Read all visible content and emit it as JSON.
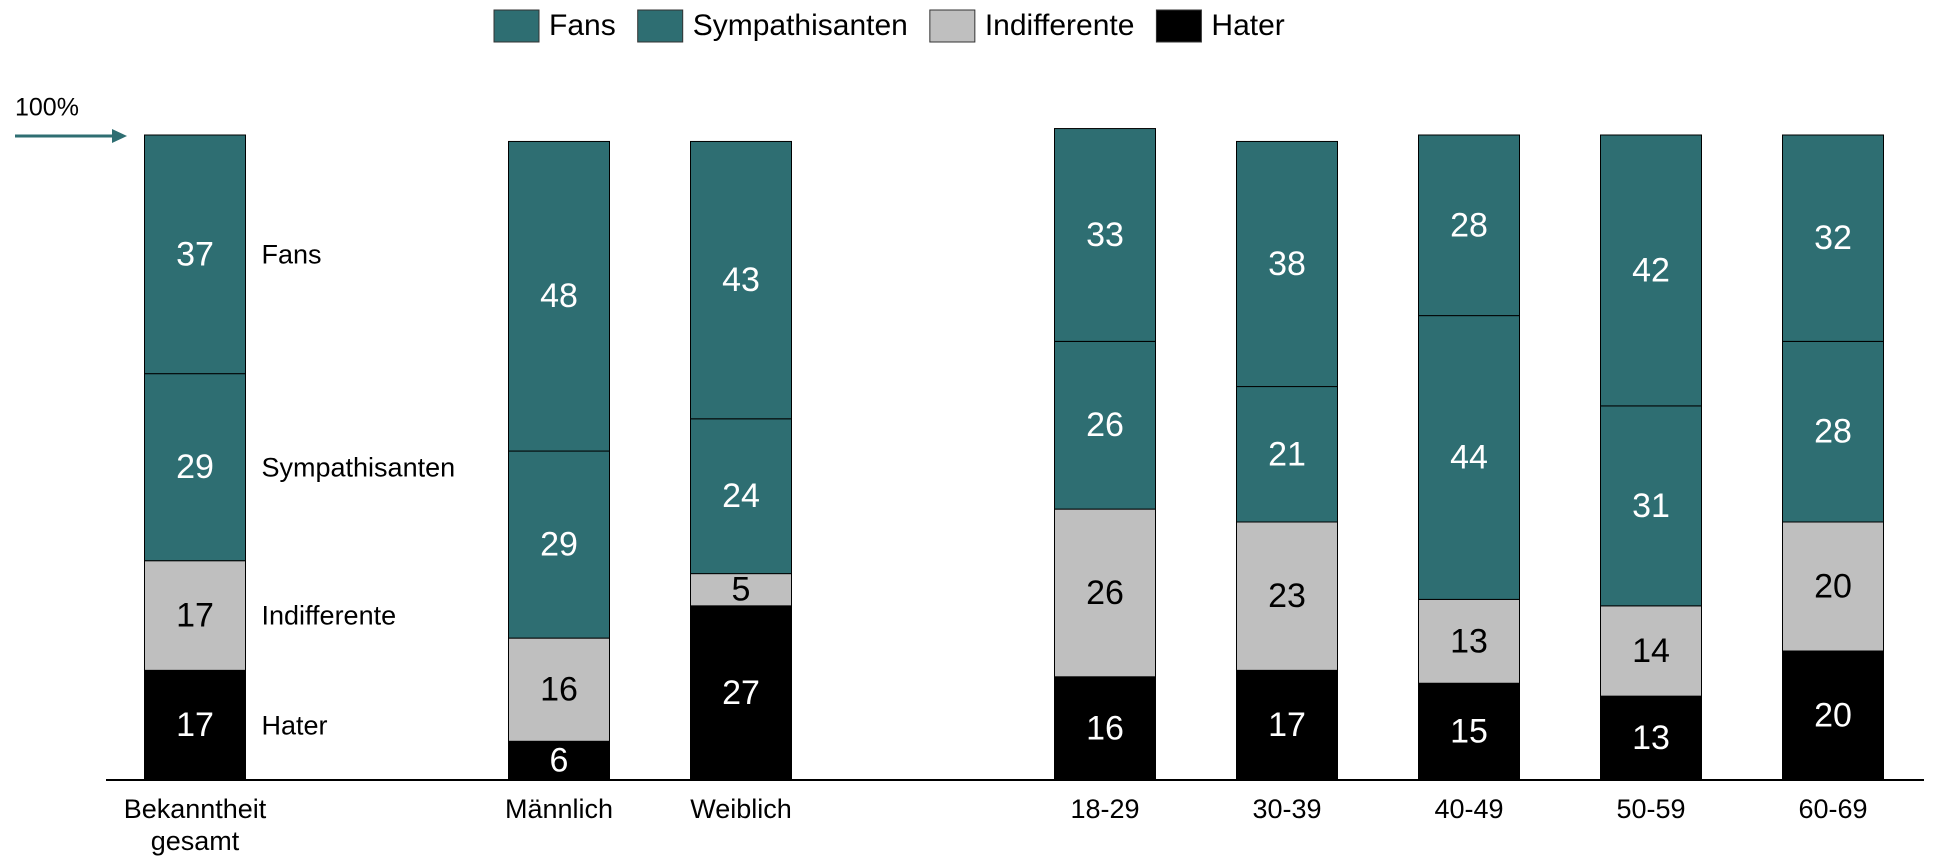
{
  "chart_data": {
    "type": "stacked_bar",
    "categories": [
      "Bekanntheit gesamt",
      "Männlich",
      "Weiblich",
      "18-29",
      "30-39",
      "40-49",
      "50-59",
      "60-69"
    ],
    "series": [
      {
        "name": "Fans",
        "color": "#2e6e72",
        "values": [
          37,
          48,
          43,
          33,
          38,
          28,
          42,
          32
        ]
      },
      {
        "name": "Sympathisanten",
        "color": "#2e6e72",
        "values": [
          29,
          29,
          24,
          26,
          21,
          44,
          31,
          28
        ]
      },
      {
        "name": "Indifferente",
        "color": "#bfbfbf",
        "values": [
          17,
          16,
          5,
          26,
          23,
          13,
          14,
          20
        ]
      },
      {
        "name": "Hater",
        "color": "#000000",
        "values": [
          17,
          6,
          27,
          16,
          17,
          15,
          13,
          20
        ]
      }
    ],
    "ylim": [
      0,
      100
    ],
    "annotation": "100%",
    "legend": "top"
  }
}
